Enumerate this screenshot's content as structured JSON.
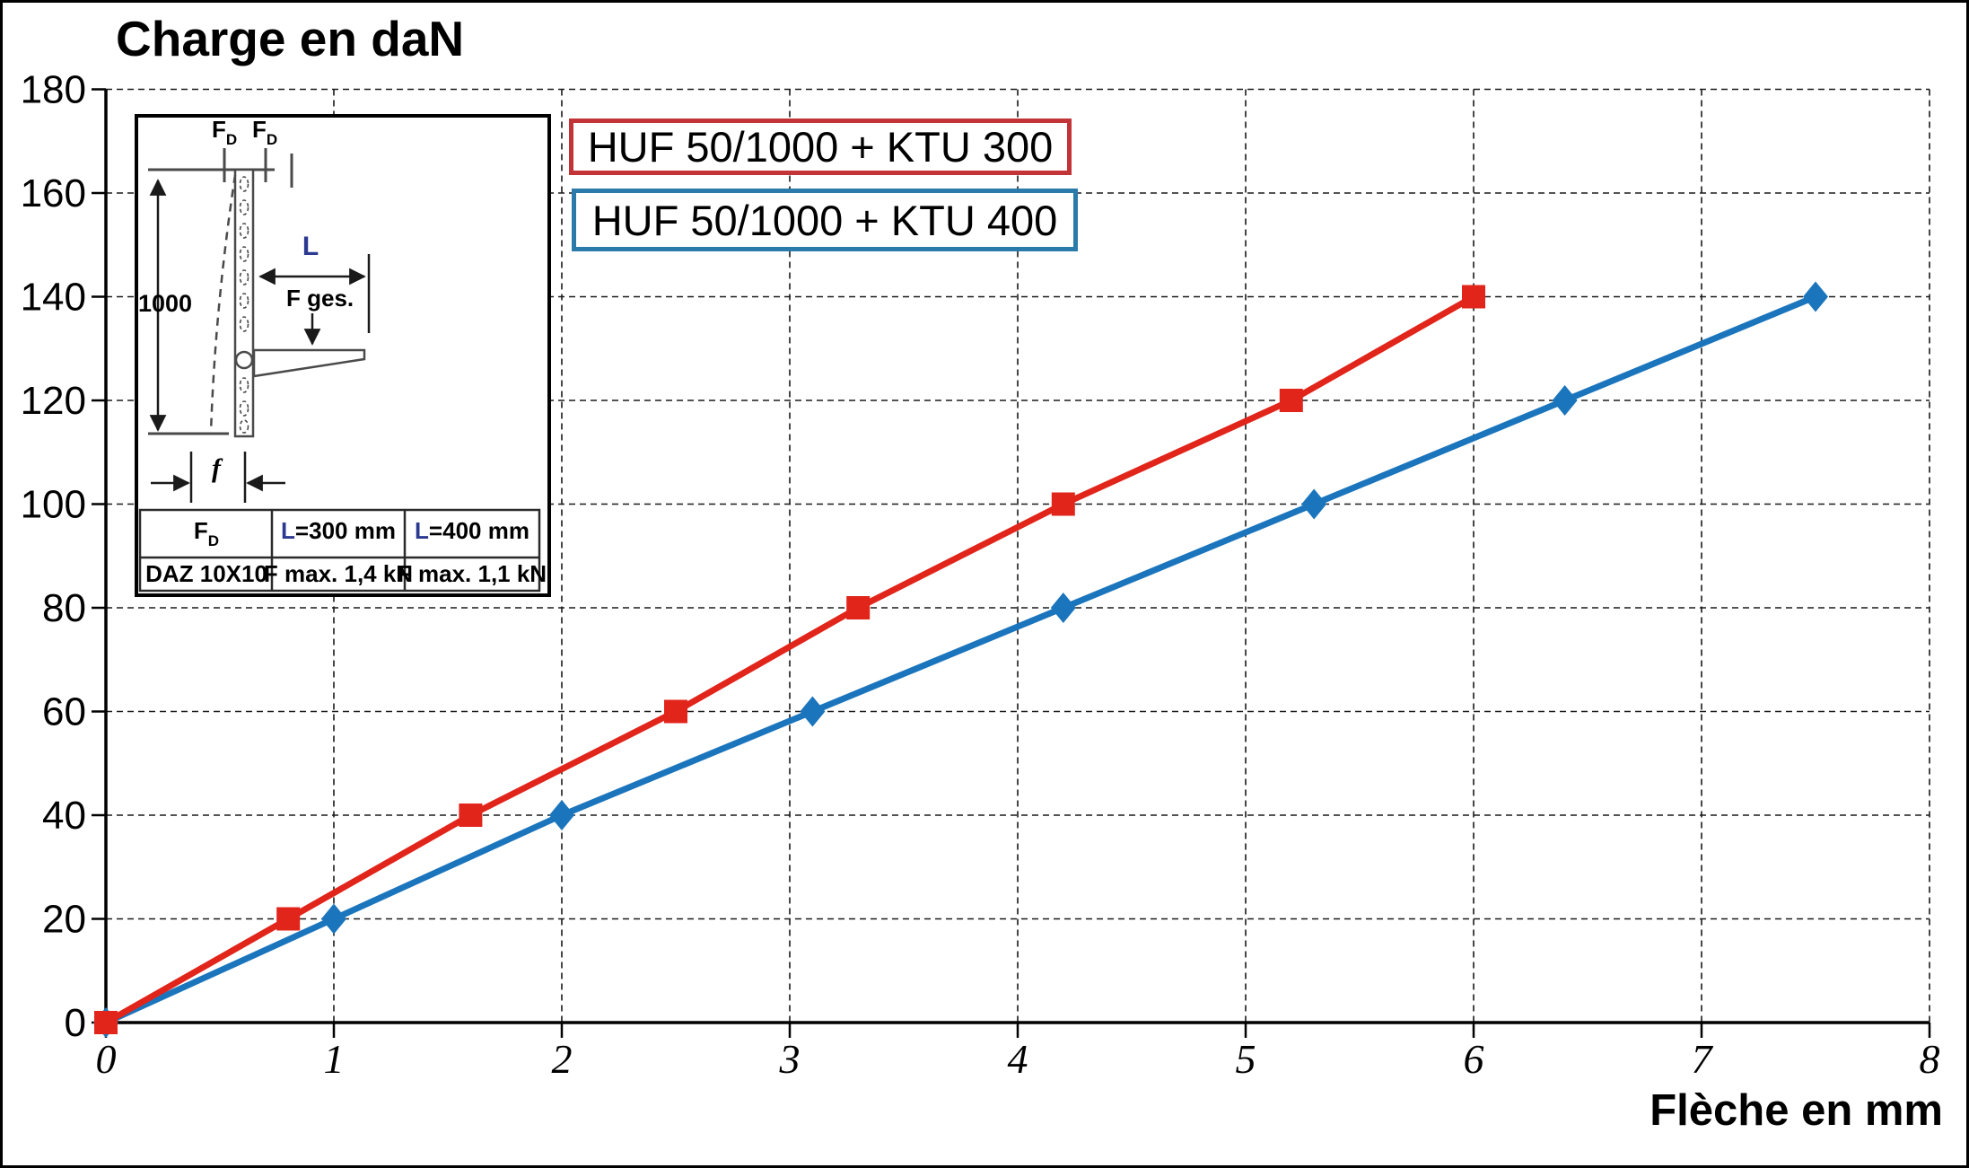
{
  "title": "Charge en daN",
  "x_axis_title": "Flèche en mm",
  "colors": {
    "series_300": "#e1251b",
    "series_400": "#1b75bc",
    "legend_border_300": "#c23438",
    "legend_border_400": "#2a7aaa",
    "green_label": "#00a651",
    "navy_label": "#2b3990"
  },
  "legend": [
    {
      "label": "HUF 50/1000 + KTU 300",
      "border_color": "#c23438"
    },
    {
      "label": "HUF 50/1000 + KTU 400",
      "border_color": "#2a7aaa"
    }
  ],
  "chart_data": {
    "type": "line",
    "title": "Charge en daN",
    "xlabel": "Flèche en mm",
    "ylabel": "Charge en daN",
    "xlim": [
      0,
      8
    ],
    "ylim": [
      0,
      180
    ],
    "x_ticks": [
      0,
      1,
      2,
      3,
      4,
      5,
      6,
      7,
      8
    ],
    "y_ticks": [
      0,
      20,
      40,
      60,
      80,
      100,
      120,
      140,
      160,
      180
    ],
    "grid": "dashed",
    "legend_position": "top-left-inside",
    "series": [
      {
        "name": "HUF 50/1000 + KTU 300",
        "color": "#e1251b",
        "marker": "square",
        "points": [
          [
            0,
            0
          ],
          [
            0.8,
            20
          ],
          [
            1.6,
            40
          ],
          [
            2.5,
            60
          ],
          [
            3.3,
            80
          ],
          [
            4.2,
            100
          ],
          [
            5.2,
            120
          ],
          [
            6,
            140
          ]
        ]
      },
      {
        "name": "HUF 50/1000 + KTU 400",
        "color": "#1b75bc",
        "marker": "diamond",
        "points": [
          [
            0,
            0
          ],
          [
            1,
            20
          ],
          [
            2,
            40
          ],
          [
            3.1,
            60
          ],
          [
            4.2,
            80
          ],
          [
            5.3,
            100
          ],
          [
            6.4,
            120
          ],
          [
            7.5,
            140
          ]
        ]
      }
    ]
  },
  "inset": {
    "top_force_1_main": "F",
    "top_force_1_sub": "D",
    "top_force_2_main": "F",
    "top_force_2_sub": "D",
    "post_height_label": "1000",
    "arm_length_label": "L",
    "total_force_label": "F ges.",
    "deflection_label": "f",
    "table": {
      "anchor_main": "F",
      "anchor_sub": "D",
      "l300_prefix": "L",
      "l300_rest": "=300 mm",
      "l400_prefix": "L",
      "l400_rest": "=400 mm",
      "anchor_type": "DAZ 10X10",
      "fmax_300": "F max. 1,4 kN",
      "fmax_400": "F max. 1,1 kN"
    }
  }
}
